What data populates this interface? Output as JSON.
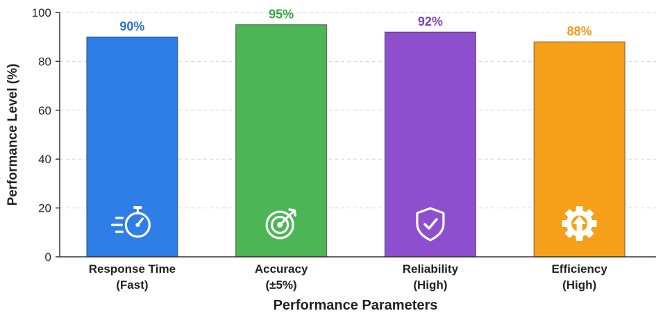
{
  "chart_data": {
    "type": "bar",
    "xlabel": "Performance Parameters",
    "ylabel": "Performance Level (%)",
    "ylim": [
      0,
      100
    ],
    "yticks": [
      0,
      20,
      40,
      60,
      80,
      100
    ],
    "grid": true,
    "categories": [
      [
        "Response Time",
        "(Fast)"
      ],
      [
        "Accuracy",
        "(±5%)"
      ],
      [
        "Reliability",
        "(High)"
      ],
      [
        "Efficiency",
        "(High)"
      ]
    ],
    "values": [
      90,
      95,
      92,
      88
    ],
    "data_labels": [
      "90%",
      "95%",
      "92%",
      "88%"
    ],
    "colors": [
      "#2f7ee8",
      "#4cb556",
      "#8e4fcf",
      "#f6a01a"
    ],
    "label_colors": [
      "#2b6fd6",
      "#3aa248",
      "#8040c4",
      "#f09a1a"
    ],
    "icons": [
      "stopwatch-icon",
      "target-icon",
      "shield-check-icon",
      "gear-upload-icon"
    ]
  }
}
